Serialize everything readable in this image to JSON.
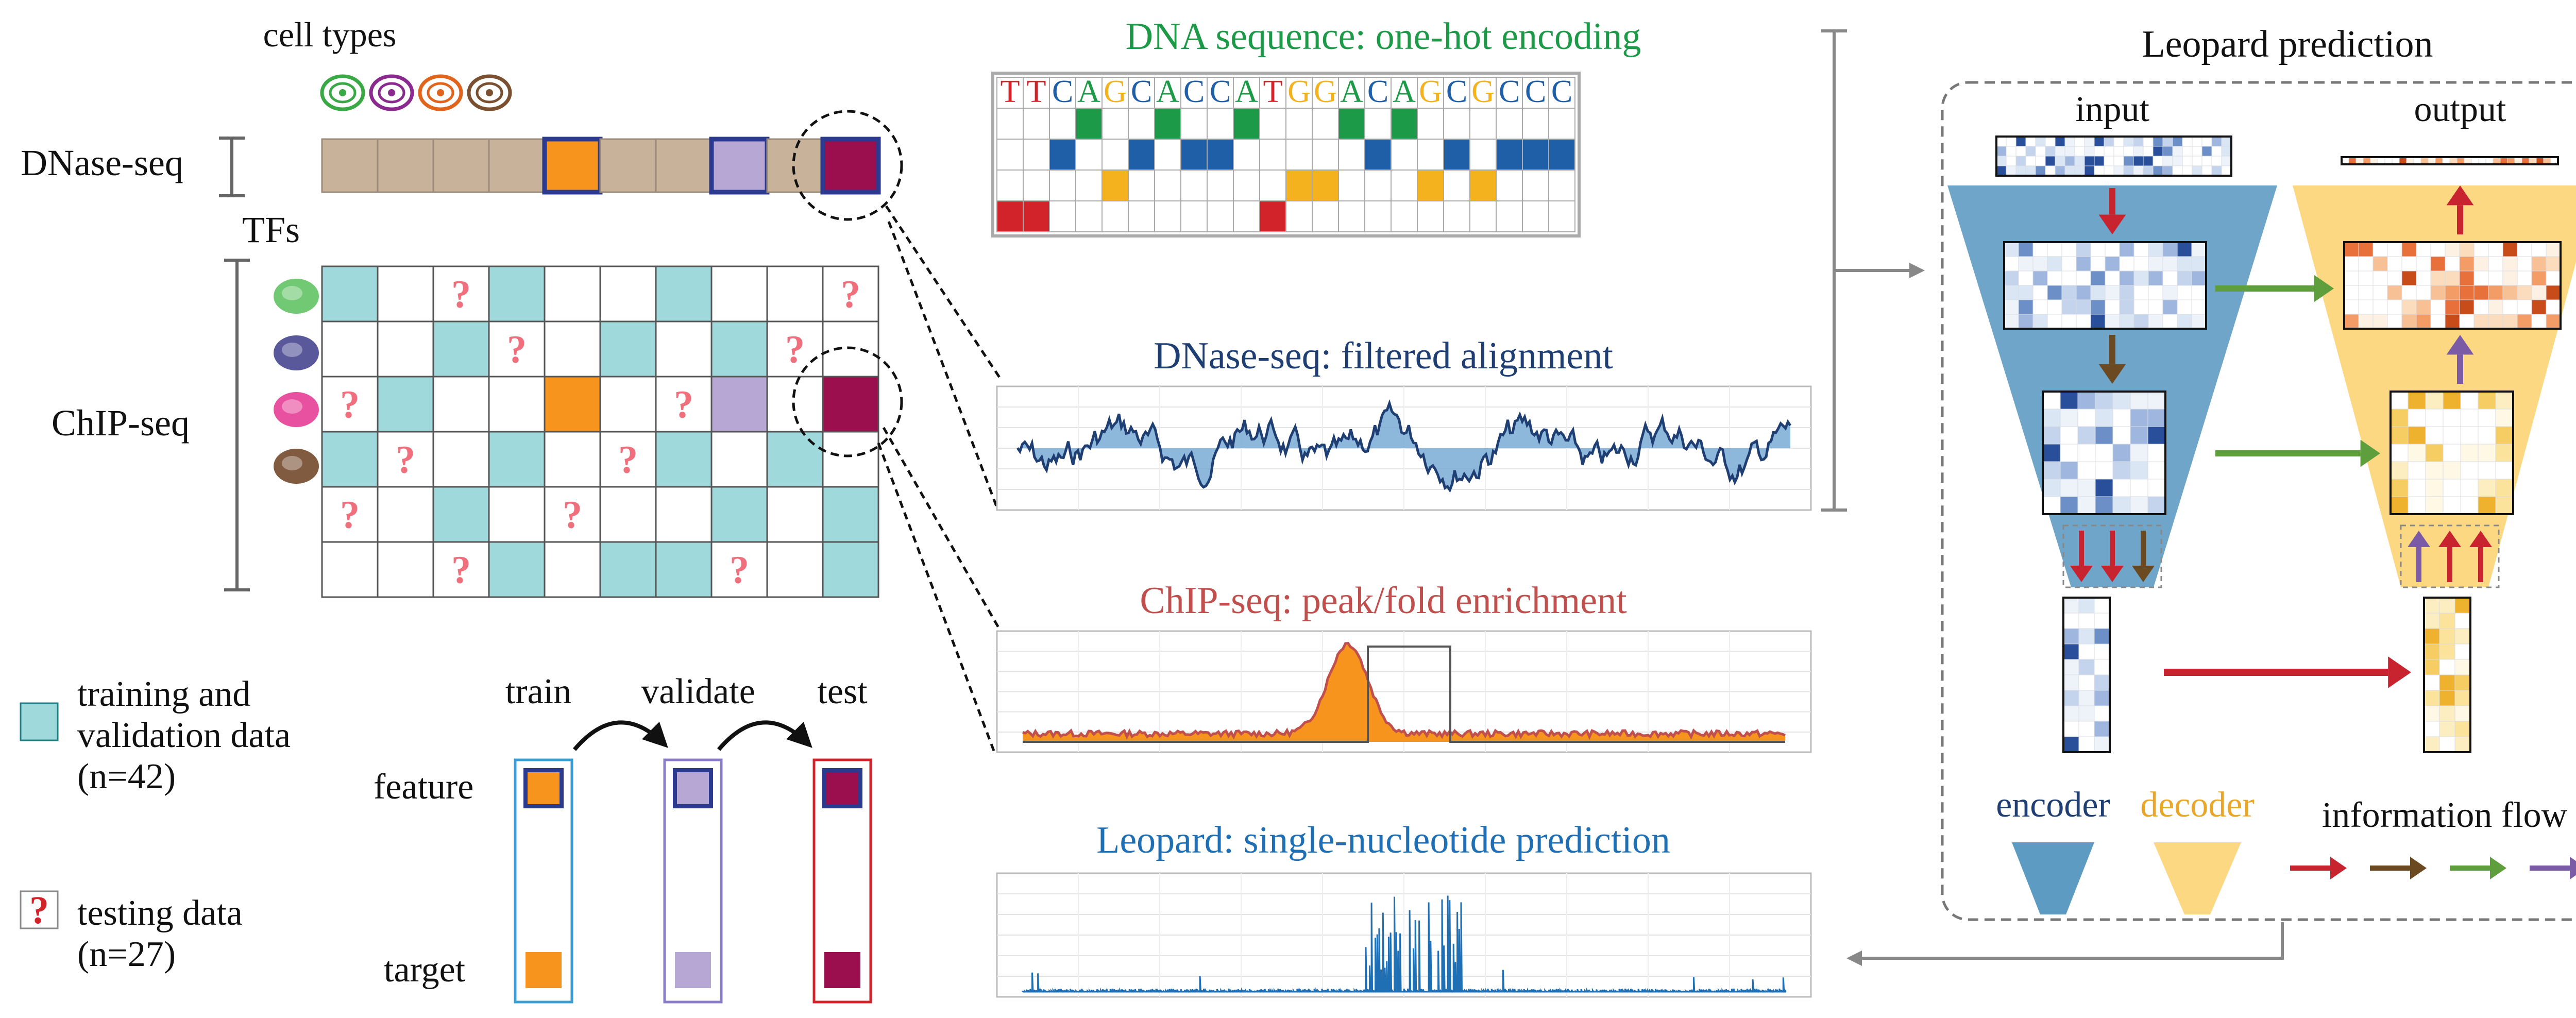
{
  "left": {
    "cell_types_title": "cell types",
    "dnase_label": "DNase-seq",
    "tfs_label": "TFs",
    "chip_label": "ChIP-seq",
    "question_mark": "?"
  },
  "legend": {
    "training_line1": "training and",
    "training_line2": "validation data",
    "training_count": "(n=42)",
    "testing_line1": "testing data",
    "testing_count": "(n=27)"
  },
  "split": {
    "train": "train",
    "validate": "validate",
    "test": "test",
    "feature": "feature",
    "target": "target"
  },
  "middle": {
    "dna_title": "DNA sequence: one-hot encoding",
    "dna_sequence": [
      "T",
      "T",
      "C",
      "A",
      "G",
      "C",
      "A",
      "C",
      "C",
      "A",
      "T",
      "G",
      "G",
      "A",
      "C",
      "A",
      "G",
      "C",
      "G",
      "C",
      "C",
      "C"
    ],
    "dnase_title": "DNase-seq: filtered alignment",
    "chip_title": "ChIP-seq: peak/fold enrichment",
    "leopard_title": "Leopard: single-nucleotide prediction"
  },
  "right": {
    "title": "Leopard prediction",
    "input": "input",
    "output": "output",
    "encoder": "encoder",
    "decoder": "decoder",
    "information_flow": "information flow"
  },
  "colors": {
    "teal": "#9fd9dc",
    "tan": "#c9b29a",
    "orange": "#f7941d",
    "lavender": "#b7a7d4",
    "maroon": "#9b0f4f",
    "navy": "#2b3a8f",
    "nuc_T": "#d2232a",
    "nuc_C": "#1f5fa8",
    "nuc_A": "#1d9a48",
    "nuc_G": "#f4b21f",
    "encoder": "#5e9bc2",
    "decoder": "#fdd883",
    "arrow_red": "#c8242f",
    "arrow_brown": "#6b4a22",
    "arrow_green": "#5f9e3c",
    "arrow_purple": "#7b5aa6"
  }
}
